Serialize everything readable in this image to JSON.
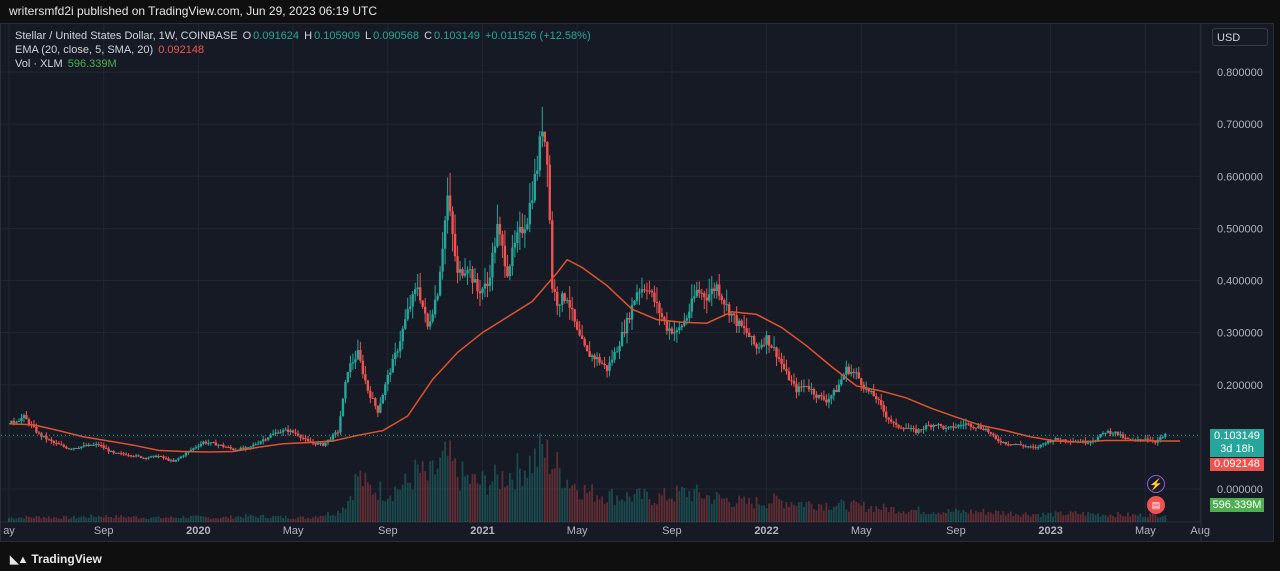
{
  "header": {
    "publish_line": "writersmfd2i published on TradingView.com, Jun 29, 2023 06:19 UTC"
  },
  "legend": {
    "symbol": "Stellar / United States Dollar, 1W, COINBASE",
    "o_label": "O",
    "o_value": "0.091624",
    "h_label": "H",
    "h_value": "0.105909",
    "l_label": "L",
    "l_value": "0.090568",
    "c_label": "C",
    "c_value": "0.103149",
    "change": "+0.011526 (+12.58%)",
    "ema_label": "EMA (20, close, 5, SMA, 20)",
    "ema_value": "0.092148",
    "vol_label": "Vol · XLM",
    "vol_value": "596.339M"
  },
  "currency_button": "USD",
  "badges": {
    "price": "0.103149",
    "countdown": "3d 18h",
    "ema": "0.092148",
    "volume": "596.339M"
  },
  "footer": {
    "brand": "TradingView"
  },
  "colors": {
    "up": "#26a69a",
    "down": "#ef5350",
    "ema": "#e0522f",
    "background": "#161a25",
    "grid": "#222631"
  },
  "icons": {
    "flash": "flash-icon",
    "flag": "us-flag-icon",
    "logo": "tradingview-logo-icon"
  },
  "chart_data": {
    "type": "candlestick",
    "title": "Stellar / United States Dollar, 1W, COINBASE",
    "ylim": [
      0,
      0.8
    ],
    "y_ticks": [
      "0.000000",
      "0.100000",
      "0.200000",
      "0.300000",
      "0.400000",
      "0.500000",
      "0.600000",
      "0.700000",
      "0.800000"
    ],
    "x_ticks": [
      "ay",
      "Sep",
      "2020",
      "May",
      "Sep",
      "2021",
      "May",
      "Sep",
      "2022",
      "May",
      "Sep",
      "2023",
      "May",
      "Aug"
    ],
    "last_close": 0.103149,
    "series": [
      {
        "name": "Stellar / United States Dollar",
        "kind": "candles",
        "close_path": [
          [
            0,
            0.125
          ],
          [
            6,
            0.138
          ],
          [
            12,
            0.105
          ],
          [
            18,
            0.088
          ],
          [
            24,
            0.078
          ],
          [
            30,
            0.082
          ],
          [
            36,
            0.085
          ],
          [
            42,
            0.068
          ],
          [
            48,
            0.066
          ],
          [
            54,
            0.06
          ],
          [
            60,
            0.063
          ],
          [
            66,
            0.052
          ],
          [
            72,
            0.072
          ],
          [
            78,
            0.09
          ],
          [
            84,
            0.085
          ],
          [
            90,
            0.076
          ],
          [
            96,
            0.078
          ],
          [
            102,
            0.095
          ],
          [
            108,
            0.11
          ],
          [
            112,
            0.112
          ],
          [
            116,
            0.105
          ],
          [
            120,
            0.09
          ],
          [
            126,
            0.085
          ],
          [
            132,
            0.11
          ],
          [
            136,
            0.23
          ],
          [
            140,
            0.26
          ],
          [
            144,
            0.19
          ],
          [
            148,
            0.15
          ],
          [
            152,
            0.215
          ],
          [
            156,
            0.27
          ],
          [
            160,
            0.34
          ],
          [
            164,
            0.39
          ],
          [
            168,
            0.31
          ],
          [
            172,
            0.38
          ],
          [
            176,
            0.56
          ],
          [
            180,
            0.41
          ],
          [
            184,
            0.43
          ],
          [
            188,
            0.38
          ],
          [
            192,
            0.39
          ],
          [
            196,
            0.5
          ],
          [
            200,
            0.42
          ],
          [
            204,
            0.48
          ],
          [
            208,
            0.52
          ],
          [
            212,
            0.62
          ],
          [
            214,
            0.7
          ],
          [
            216,
            0.64
          ],
          [
            218,
            0.39
          ],
          [
            220,
            0.36
          ],
          [
            224,
            0.37
          ],
          [
            228,
            0.3
          ],
          [
            232,
            0.26
          ],
          [
            236,
            0.25
          ],
          [
            240,
            0.23
          ],
          [
            244,
            0.27
          ],
          [
            248,
            0.32
          ],
          [
            252,
            0.38
          ],
          [
            256,
            0.39
          ],
          [
            260,
            0.35
          ],
          [
            264,
            0.31
          ],
          [
            268,
            0.3
          ],
          [
            272,
            0.33
          ],
          [
            276,
            0.38
          ],
          [
            280,
            0.37
          ],
          [
            284,
            0.39
          ],
          [
            288,
            0.35
          ],
          [
            292,
            0.32
          ],
          [
            296,
            0.3
          ],
          [
            300,
            0.27
          ],
          [
            304,
            0.29
          ],
          [
            308,
            0.26
          ],
          [
            312,
            0.22
          ],
          [
            316,
            0.19
          ],
          [
            320,
            0.2
          ],
          [
            324,
            0.18
          ],
          [
            328,
            0.17
          ],
          [
            332,
            0.19
          ],
          [
            336,
            0.23
          ],
          [
            340,
            0.22
          ],
          [
            344,
            0.19
          ],
          [
            348,
            0.175
          ],
          [
            352,
            0.14
          ],
          [
            356,
            0.12
          ],
          [
            360,
            0.118
          ],
          [
            364,
            0.11
          ],
          [
            368,
            0.12
          ],
          [
            372,
            0.125
          ],
          [
            376,
            0.115
          ],
          [
            380,
            0.12
          ],
          [
            384,
            0.125
          ],
          [
            388,
            0.12
          ],
          [
            392,
            0.115
          ],
          [
            396,
            0.095
          ],
          [
            400,
            0.088
          ],
          [
            404,
            0.086
          ],
          [
            408,
            0.082
          ],
          [
            412,
            0.078
          ],
          [
            416,
            0.09
          ],
          [
            420,
            0.095
          ],
          [
            424,
            0.094
          ],
          [
            428,
            0.092
          ],
          [
            432,
            0.09
          ],
          [
            436,
            0.095
          ],
          [
            440,
            0.11
          ],
          [
            444,
            0.108
          ],
          [
            448,
            0.096
          ],
          [
            452,
            0.092
          ],
          [
            456,
            0.098
          ],
          [
            460,
            0.091
          ],
          [
            464,
            0.103
          ]
        ]
      },
      {
        "name": "EMA (20, close, 5, SMA, 20)",
        "kind": "line",
        "points": [
          [
            0,
            0.125
          ],
          [
            10,
            0.123
          ],
          [
            20,
            0.112
          ],
          [
            30,
            0.1
          ],
          [
            40,
            0.092
          ],
          [
            50,
            0.084
          ],
          [
            60,
            0.074
          ],
          [
            70,
            0.072
          ],
          [
            80,
            0.071
          ],
          [
            90,
            0.072
          ],
          [
            100,
            0.08
          ],
          [
            110,
            0.087
          ],
          [
            120,
            0.089
          ],
          [
            130,
            0.092
          ],
          [
            140,
            0.103
          ],
          [
            150,
            0.112
          ],
          [
            160,
            0.14
          ],
          [
            170,
            0.21
          ],
          [
            180,
            0.262
          ],
          [
            190,
            0.3
          ],
          [
            200,
            0.33
          ],
          [
            210,
            0.36
          ],
          [
            220,
            0.415
          ],
          [
            224,
            0.44
          ],
          [
            230,
            0.425
          ],
          [
            240,
            0.39
          ],
          [
            250,
            0.345
          ],
          [
            260,
            0.325
          ],
          [
            270,
            0.32
          ],
          [
            280,
            0.318
          ],
          [
            290,
            0.34
          ],
          [
            300,
            0.335
          ],
          [
            310,
            0.31
          ],
          [
            320,
            0.275
          ],
          [
            330,
            0.235
          ],
          [
            340,
            0.198
          ],
          [
            350,
            0.188
          ],
          [
            360,
            0.175
          ],
          [
            370,
            0.155
          ],
          [
            380,
            0.138
          ],
          [
            390,
            0.122
          ],
          [
            400,
            0.112
          ],
          [
            410,
            0.1
          ],
          [
            420,
            0.092
          ],
          [
            430,
            0.09
          ],
          [
            440,
            0.093
          ],
          [
            450,
            0.093
          ],
          [
            460,
            0.092
          ],
          [
            470,
            0.092
          ]
        ]
      },
      {
        "name": "Vol · XLM",
        "kind": "histogram",
        "last": "596.339M",
        "values_rel": [
          [
            0,
            0.05
          ],
          [
            12,
            0.06
          ],
          [
            24,
            0.05
          ],
          [
            36,
            0.07
          ],
          [
            48,
            0.06
          ],
          [
            60,
            0.05
          ],
          [
            72,
            0.06
          ],
          [
            84,
            0.05
          ],
          [
            96,
            0.07
          ],
          [
            108,
            0.06
          ],
          [
            120,
            0.05
          ],
          [
            132,
            0.12
          ],
          [
            136,
            0.25
          ],
          [
            140,
            0.55
          ],
          [
            144,
            0.4
          ],
          [
            152,
            0.35
          ],
          [
            160,
            0.45
          ],
          [
            164,
            0.6
          ],
          [
            168,
            0.5
          ],
          [
            176,
            0.75
          ],
          [
            180,
            0.55
          ],
          [
            188,
            0.45
          ],
          [
            196,
            0.5
          ],
          [
            204,
            0.6
          ],
          [
            212,
            0.75
          ],
          [
            214,
            0.85
          ],
          [
            218,
            0.7
          ],
          [
            224,
            0.5
          ],
          [
            232,
            0.35
          ],
          [
            244,
            0.3
          ],
          [
            252,
            0.3
          ],
          [
            260,
            0.28
          ],
          [
            272,
            0.35
          ],
          [
            284,
            0.28
          ],
          [
            296,
            0.22
          ],
          [
            308,
            0.25
          ],
          [
            320,
            0.22
          ],
          [
            332,
            0.2
          ],
          [
            344,
            0.18
          ],
          [
            356,
            0.15
          ],
          [
            368,
            0.13
          ],
          [
            380,
            0.12
          ],
          [
            392,
            0.12
          ],
          [
            404,
            0.1
          ],
          [
            416,
            0.09
          ],
          [
            428,
            0.1
          ],
          [
            440,
            0.09
          ],
          [
            452,
            0.08
          ],
          [
            464,
            0.09
          ]
        ]
      }
    ]
  }
}
